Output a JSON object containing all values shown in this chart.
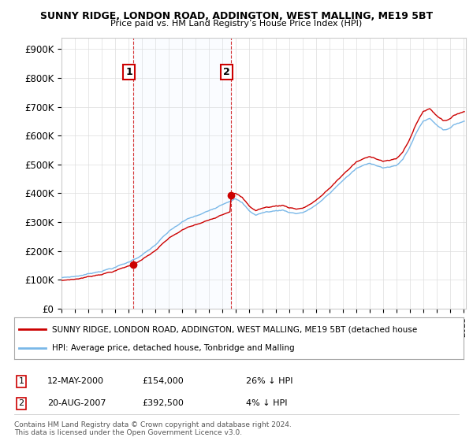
{
  "title1": "SUNNY RIDGE, LONDON ROAD, ADDINGTON, WEST MALLING, ME19 5BT",
  "title2": "Price paid vs. HM Land Registry’s House Price Index (HPI)",
  "legend_line1": "SUNNY RIDGE, LONDON ROAD, ADDINGTON, WEST MALLING, ME19 5BT (detached house",
  "legend_line2": "HPI: Average price, detached house, Tonbridge and Malling",
  "annotation1_date": "12-MAY-2000",
  "annotation1_price": "£154,000",
  "annotation1_hpi": "26% ↓ HPI",
  "annotation2_date": "20-AUG-2007",
  "annotation2_price": "£392,500",
  "annotation2_hpi": "4% ↓ HPI",
  "footer": "Contains HM Land Registry data © Crown copyright and database right 2024.\nThis data is licensed under the Open Government Licence v3.0.",
  "hpi_color": "#7ab8e8",
  "hpi_fill_color": "#ddeeff",
  "price_color": "#cc0000",
  "ylim": [
    0,
    940000
  ],
  "yticks": [
    0,
    100000,
    200000,
    300000,
    400000,
    500000,
    600000,
    700000,
    800000,
    900000
  ],
  "ytick_labels": [
    "£0",
    "£100K",
    "£200K",
    "£300K",
    "£400K",
    "£500K",
    "£600K",
    "£700K",
    "£800K",
    "£900K"
  ],
  "sale1_year": 2000.36,
  "sale1_price": 154000,
  "sale2_year": 2007.63,
  "sale2_price": 392500,
  "xmin": 1995.0,
  "xmax": 2025.2
}
